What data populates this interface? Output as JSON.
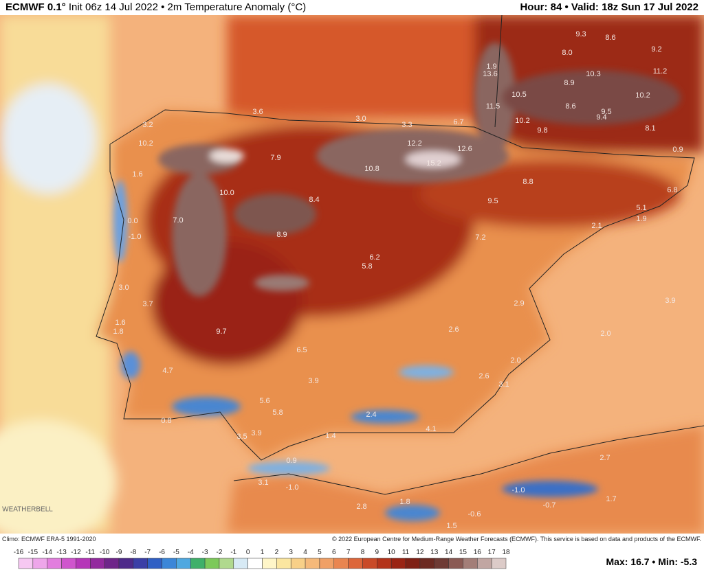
{
  "header": {
    "model": "ECMWF 0.1°",
    "subtitle": "Init 06z 14 Jul 2022 • 2m Temperature Anomaly (°C)",
    "valid": "Hour: 84 • Valid: 18z Sun 17 Jul 2022"
  },
  "map": {
    "labels": [
      "9.3",
      "8.6",
      "8.0",
      "9.2",
      "1.9",
      "13.6",
      "10.3",
      "11.2",
      "8.9",
      "10.5",
      "10.2",
      "8.6",
      "9.5",
      "11.5",
      "9.4",
      "10.2",
      "9.8",
      "8.1",
      "3.6",
      "3.2",
      "3.0",
      "3.3",
      "6.7",
      "10.2",
      "12.2",
      "12.6",
      "0.9",
      "7.9",
      "15.2",
      "10.8",
      "1.6",
      "8.8",
      "6.8",
      "10.0",
      "8.4",
      "9.5",
      "5.1",
      "0.0",
      "7.0",
      "1.9",
      "2.1",
      "-1.0",
      "8.9",
      "7.2",
      "6.2",
      "5.8",
      "3.0",
      "3.9",
      "3.7",
      "2.9",
      "1.6",
      "1.8",
      "2.6",
      "9.7",
      "2.0",
      "6.5",
      "2.0",
      "4.7",
      "2.6",
      "3.9",
      "3.1",
      "5.6",
      "5.8",
      "0.8",
      "2.4",
      "3.5",
      "3.9",
      "4.1",
      "1.4",
      "2.7",
      "0.9",
      "3.1",
      "-1.0",
      "-1.0",
      "1.8",
      "1.7",
      "-0.7",
      "2.8",
      "-0.6",
      "1.5"
    ],
    "logo": "WEATHERBELL"
  },
  "footer": {
    "climo": "Climo: ECMWF ERA-5 1991-2020",
    "copyright": "© 2022 European Centre for Medium-Range Weather Forecasts (ECMWF). This service is based on data and products of the ECMWF.",
    "extremes": "Max: 16.7 • Min: -5.3"
  },
  "colorbar": {
    "ticks": [
      -16,
      -15,
      -14,
      -13,
      -12,
      -11,
      -10,
      -9,
      -8,
      -7,
      -6,
      -5,
      -4,
      -3,
      -2,
      -1,
      0,
      1,
      2,
      3,
      4,
      5,
      6,
      7,
      8,
      9,
      10,
      11,
      12,
      13,
      14,
      15,
      16,
      17,
      18
    ],
    "colors": [
      "#f6c8f2",
      "#eea6ea",
      "#e27ede",
      "#cf55cd",
      "#b536b8",
      "#93299e",
      "#6e2589",
      "#4e2a8a",
      "#3b3fa6",
      "#2f5fc4",
      "#3b86d8",
      "#4fa8e0",
      "#3fb06a",
      "#7cc95a",
      "#b0d98e",
      "#d7eaf5",
      "#ffffff",
      "#fff6c8",
      "#fbe6a0",
      "#f8d088",
      "#f5b97a",
      "#f0a066",
      "#e98550",
      "#dd663a",
      "#c94a28",
      "#b3331a",
      "#9a2414",
      "#7f2014",
      "#6c2a22",
      "#6e3a34",
      "#8a5a54",
      "#a37e78",
      "#c1a6a2",
      "#dccbc8"
    ]
  }
}
